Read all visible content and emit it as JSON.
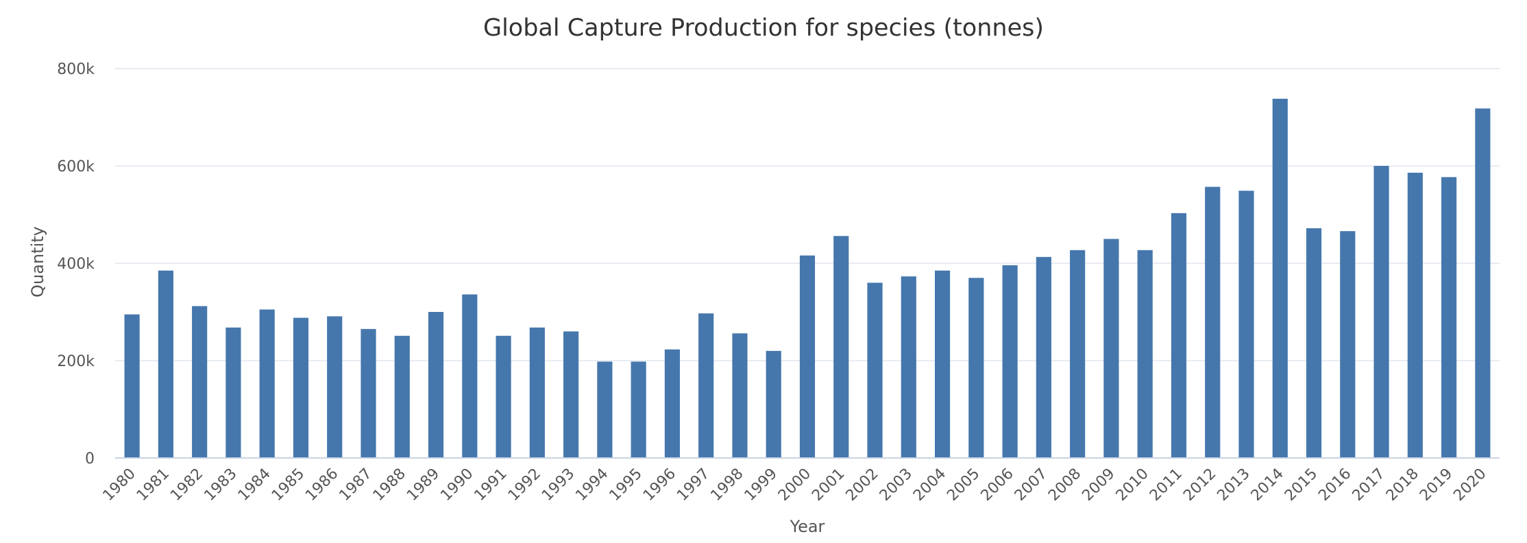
{
  "chart_data": {
    "type": "bar",
    "title": "Global Capture Production for species (tonnes)",
    "xlabel": "Year",
    "ylabel": "Quantity",
    "ylim": [
      0,
      800000
    ],
    "yticks": [
      {
        "value": 0,
        "label": "0"
      },
      {
        "value": 200000,
        "label": "200k"
      },
      {
        "value": 400000,
        "label": "400k"
      },
      {
        "value": 600000,
        "label": "600k"
      },
      {
        "value": 800000,
        "label": "800k"
      }
    ],
    "grid": true,
    "legend": "none",
    "bar_color": "#4577ad",
    "categories": [
      "1980",
      "1981",
      "1982",
      "1983",
      "1984",
      "1985",
      "1986",
      "1987",
      "1988",
      "1989",
      "1990",
      "1991",
      "1992",
      "1993",
      "1994",
      "1995",
      "1996",
      "1997",
      "1998",
      "1999",
      "2000",
      "2001",
      "2002",
      "2003",
      "2004",
      "2005",
      "2006",
      "2007",
      "2008",
      "2009",
      "2010",
      "2011",
      "2012",
      "2013",
      "2014",
      "2015",
      "2016",
      "2017",
      "2018",
      "2019",
      "2020"
    ],
    "values": [
      295000,
      385000,
      312000,
      268000,
      305000,
      288000,
      291000,
      265000,
      251000,
      300000,
      336000,
      251000,
      268000,
      260000,
      198000,
      198000,
      223000,
      297000,
      256000,
      220000,
      416000,
      456000,
      360000,
      373000,
      385000,
      370000,
      396000,
      413000,
      427000,
      450000,
      427000,
      503000,
      557000,
      549000,
      738000,
      472000,
      466000,
      600000,
      586000,
      577000,
      718000
    ]
  }
}
